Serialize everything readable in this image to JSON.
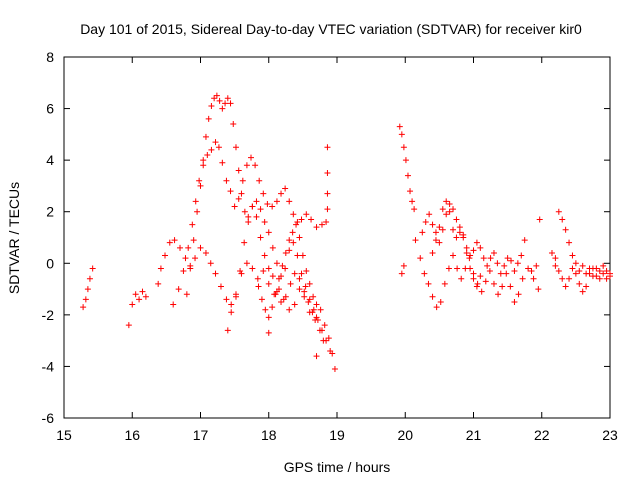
{
  "chart_data": {
    "type": "scatter",
    "title": "Day 101 of 2015, Sidereal Day-to-day VTEC variation (SDTVAR) for receiver kir0",
    "xlabel": "GPS time / hours",
    "ylabel": "SDTVAR / TECUs",
    "xlim": [
      15,
      23
    ],
    "ylim": [
      -6,
      8
    ],
    "xticks": [
      "15",
      "16",
      "17",
      "18",
      "19",
      "20",
      "21",
      "22",
      "23"
    ],
    "yticks": [
      "-6",
      "-4",
      "-2",
      "0",
      "2",
      "4",
      "6",
      "8"
    ],
    "marker": "+",
    "marker_color": "#ff0000",
    "segments": [
      {
        "name": "seg-a",
        "points": [
          [
            15.28,
            -1.7
          ],
          [
            15.32,
            -1.4
          ],
          [
            15.35,
            -1.0
          ],
          [
            15.38,
            -0.6
          ],
          [
            15.42,
            -0.2
          ]
        ]
      },
      {
        "name": "seg-b",
        "points": [
          [
            15.95,
            -2.4
          ],
          [
            16.0,
            -1.6
          ],
          [
            16.05,
            -1.2
          ],
          [
            16.1,
            -1.4
          ],
          [
            16.15,
            -1.1
          ],
          [
            16.2,
            -1.3
          ]
        ]
      },
      {
        "name": "seg-c",
        "points": [
          [
            16.38,
            -0.8
          ],
          [
            16.42,
            -0.2
          ],
          [
            16.48,
            0.3
          ],
          [
            16.55,
            0.8
          ],
          [
            16.62,
            0.9
          ],
          [
            16.7,
            0.6
          ],
          [
            16.78,
            0.2
          ],
          [
            16.85,
            -0.1
          ],
          [
            16.92,
            0.2
          ],
          [
            17.0,
            0.6
          ],
          [
            17.08,
            0.4
          ],
          [
            17.15,
            0.0
          ],
          [
            17.22,
            -0.4
          ],
          [
            17.3,
            -0.9
          ],
          [
            17.38,
            -1.4
          ],
          [
            17.45,
            -1.9
          ],
          [
            17.52,
            -1.2
          ],
          [
            17.6,
            -0.4
          ],
          [
            17.68,
            0.0
          ],
          [
            17.76,
            -0.2
          ],
          [
            17.84,
            -0.6
          ],
          [
            17.92,
            -0.3
          ],
          [
            18.0,
            -0.8
          ],
          [
            18.08,
            -1.2
          ],
          [
            18.15,
            -1.0
          ],
          [
            18.22,
            -1.4
          ],
          [
            18.3,
            -1.8
          ],
          [
            18.38,
            -1.6
          ],
          [
            18.45,
            -1.0
          ],
          [
            18.52,
            -1.3
          ],
          [
            18.6,
            -1.9
          ],
          [
            18.68,
            -2.2
          ],
          [
            18.75,
            -2.6
          ],
          [
            18.82,
            -2.4
          ],
          [
            18.88,
            -2.9
          ],
          [
            18.93,
            -3.5
          ],
          [
            18.97,
            -4.1
          ]
        ]
      },
      {
        "name": "seg-d",
        "points": [
          [
            16.6,
            -1.6
          ],
          [
            16.68,
            -1.0
          ],
          [
            16.75,
            -0.3
          ],
          [
            16.82,
            0.6
          ],
          [
            16.88,
            1.5
          ],
          [
            16.93,
            2.4
          ],
          [
            16.98,
            3.2
          ],
          [
            17.04,
            3.8
          ],
          [
            17.1,
            4.2
          ],
          [
            17.16,
            4.4
          ],
          [
            17.22,
            4.7
          ],
          [
            17.27,
            4.5
          ],
          [
            17.32,
            3.9
          ],
          [
            17.38,
            3.2
          ],
          [
            17.44,
            2.8
          ],
          [
            17.5,
            2.2
          ],
          [
            17.56,
            2.5
          ],
          [
            17.62,
            3.2
          ],
          [
            17.68,
            3.8
          ],
          [
            17.74,
            4.1
          ],
          [
            17.8,
            3.8
          ],
          [
            17.86,
            3.2
          ],
          [
            17.92,
            2.7
          ],
          [
            17.98,
            2.3
          ],
          [
            18.05,
            2.2
          ],
          [
            18.12,
            2.4
          ],
          [
            18.18,
            2.7
          ],
          [
            18.24,
            2.9
          ],
          [
            18.3,
            2.4
          ],
          [
            18.36,
            1.9
          ],
          [
            18.42,
            1.6
          ],
          [
            18.48,
            1.7
          ],
          [
            18.55,
            1.9
          ],
          [
            18.62,
            1.7
          ],
          [
            18.7,
            1.4
          ],
          [
            18.78,
            1.5
          ],
          [
            18.84,
            1.6
          ]
        ]
      },
      {
        "name": "seg-e",
        "points": [
          [
            16.8,
            -1.2
          ],
          [
            16.85,
            -0.2
          ],
          [
            16.9,
            0.9
          ],
          [
            16.95,
            2.0
          ],
          [
            17.0,
            3.0
          ],
          [
            17.04,
            4.0
          ],
          [
            17.08,
            4.9
          ],
          [
            17.12,
            5.6
          ],
          [
            17.16,
            6.1
          ],
          [
            17.2,
            6.4
          ],
          [
            17.24,
            6.5
          ],
          [
            17.28,
            6.3
          ],
          [
            17.32,
            6.0
          ],
          [
            17.36,
            6.2
          ],
          [
            17.4,
            6.4
          ],
          [
            17.44,
            6.2
          ],
          [
            17.48,
            5.4
          ],
          [
            17.52,
            4.5
          ],
          [
            17.56,
            3.6
          ],
          [
            17.6,
            2.7
          ],
          [
            17.65,
            2.0
          ],
          [
            17.7,
            1.8
          ],
          [
            17.76,
            2.2
          ],
          [
            17.82,
            2.4
          ],
          [
            17.88,
            2.1
          ],
          [
            17.94,
            1.6
          ],
          [
            18.0,
            1.2
          ],
          [
            18.06,
            0.6
          ],
          [
            18.12,
            0.0
          ],
          [
            18.18,
            -0.5
          ],
          [
            18.24,
            -0.2
          ],
          [
            18.3,
            0.5
          ],
          [
            18.36,
            0.8
          ],
          [
            18.42,
            0.3
          ],
          [
            18.48,
            -0.4
          ],
          [
            18.54,
            -0.9
          ],
          [
            18.6,
            -1.4
          ],
          [
            18.66,
            -1.8
          ],
          [
            18.72,
            -2.2
          ],
          [
            18.78,
            -2.6
          ],
          [
            18.84,
            -3.0
          ],
          [
            18.9,
            -3.4
          ]
        ]
      },
      {
        "name": "seg-f",
        "points": [
          [
            17.52,
            -1.3
          ],
          [
            17.58,
            -0.3
          ],
          [
            17.64,
            0.8
          ],
          [
            17.7,
            1.6
          ],
          [
            17.76,
            2.2
          ],
          [
            17.82,
            1.8
          ],
          [
            17.88,
            1.0
          ],
          [
            17.94,
            0.3
          ],
          [
            18.0,
            -0.2
          ],
          [
            18.06,
            -0.5
          ],
          [
            18.12,
            -1.1
          ],
          [
            18.18,
            -1.5
          ],
          [
            18.25,
            -1.3
          ],
          [
            18.32,
            -0.8
          ],
          [
            18.38,
            -0.4
          ],
          [
            18.45,
            -0.6
          ],
          [
            18.52,
            -1.1
          ],
          [
            18.58,
            -1.5
          ],
          [
            18.64,
            -1.9
          ],
          [
            18.7,
            -2.1
          ],
          [
            18.76,
            -1.8
          ]
        ]
      },
      {
        "name": "seg-g",
        "points": [
          [
            17.85,
            -0.9
          ],
          [
            17.9,
            -1.4
          ],
          [
            17.95,
            -1.8
          ],
          [
            18.0,
            -2.1
          ],
          [
            18.05,
            -1.7
          ],
          [
            18.1,
            -1.2
          ],
          [
            18.15,
            -0.6
          ],
          [
            18.2,
            -0.1
          ],
          [
            18.25,
            0.4
          ],
          [
            18.3,
            0.9
          ],
          [
            18.35,
            1.2
          ],
          [
            18.4,
            1.5
          ],
          [
            18.45,
            1.0
          ],
          [
            18.5,
            0.3
          ],
          [
            18.55,
            -0.3
          ],
          [
            18.6,
            -0.8
          ],
          [
            18.65,
            -1.3
          ],
          [
            18.7,
            -1.6
          ]
        ]
      },
      {
        "name": "seg-h",
        "points": [
          [
            17.4,
            -2.6
          ],
          [
            17.45,
            -1.6
          ],
          [
            18.0,
            -2.7
          ],
          [
            18.7,
            -3.6
          ],
          [
            18.8,
            -3.0
          ],
          [
            18.86,
            2.1
          ],
          [
            18.86,
            2.7
          ],
          [
            18.86,
            3.5
          ],
          [
            18.86,
            4.5
          ]
        ]
      },
      {
        "name": "seg-i",
        "points": [
          [
            19.92,
            5.3
          ],
          [
            19.95,
            5.0
          ],
          [
            19.98,
            4.5
          ],
          [
            20.01,
            4.0
          ],
          [
            20.04,
            3.4
          ],
          [
            20.07,
            2.8
          ],
          [
            20.1,
            2.4
          ],
          [
            20.13,
            2.1
          ]
        ]
      },
      {
        "name": "seg-j",
        "points": [
          [
            19.95,
            -0.4
          ],
          [
            19.98,
            -0.1
          ],
          [
            20.15,
            0.9
          ],
          [
            20.22,
            0.2
          ],
          [
            20.28,
            -0.4
          ],
          [
            20.34,
            -0.8
          ],
          [
            20.4,
            -1.3
          ],
          [
            20.46,
            -1.7
          ],
          [
            20.52,
            -1.5
          ],
          [
            20.58,
            -0.8
          ],
          [
            20.64,
            -0.2
          ],
          [
            20.7,
            0.3
          ],
          [
            20.76,
            -0.2
          ],
          [
            20.82,
            -0.6
          ],
          [
            20.88,
            -0.2
          ],
          [
            20.94,
            0.2
          ],
          [
            21.0,
            -0.4
          ],
          [
            21.06,
            -0.8
          ],
          [
            21.12,
            -1.1
          ],
          [
            21.18,
            -0.7
          ],
          [
            21.24,
            -0.3
          ],
          [
            21.3,
            -0.8
          ],
          [
            21.36,
            -1.2
          ],
          [
            21.42,
            -0.9
          ],
          [
            21.48,
            -0.4
          ],
          [
            21.54,
            -0.9
          ],
          [
            21.6,
            -1.5
          ],
          [
            21.66,
            -1.2
          ],
          [
            21.72,
            -0.6
          ],
          [
            21.8,
            -0.2
          ],
          [
            21.88,
            -0.6
          ],
          [
            21.95,
            -1.0
          ]
        ]
      },
      {
        "name": "seg-k",
        "points": [
          [
            20.25,
            1.2
          ],
          [
            20.3,
            1.6
          ],
          [
            20.35,
            1.9
          ],
          [
            20.4,
            1.5
          ],
          [
            20.45,
            1.2
          ],
          [
            20.5,
            0.8
          ],
          [
            20.55,
            1.3
          ],
          [
            20.6,
            1.9
          ],
          [
            20.65,
            2.3
          ],
          [
            20.7,
            2.1
          ],
          [
            20.75,
            1.7
          ],
          [
            20.8,
            1.2
          ],
          [
            20.85,
            1.0
          ],
          [
            20.9,
            0.6
          ],
          [
            20.95,
            0.3
          ],
          [
            21.0,
            0.5
          ],
          [
            21.05,
            0.8
          ],
          [
            21.1,
            0.6
          ],
          [
            21.15,
            0.2
          ],
          [
            21.2,
            -0.1
          ],
          [
            21.25,
            0.2
          ],
          [
            21.3,
            0.4
          ],
          [
            21.35,
            0.0
          ],
          [
            21.4,
            -0.4
          ],
          [
            21.45,
            -0.1
          ],
          [
            21.5,
            0.2
          ],
          [
            21.55,
            0.1
          ],
          [
            21.6,
            -0.3
          ],
          [
            21.65,
            0.0
          ],
          [
            21.7,
            0.3
          ],
          [
            21.75,
            0.9
          ],
          [
            21.85,
            -0.3
          ],
          [
            21.92,
            -0.1
          ],
          [
            21.97,
            1.7
          ]
        ]
      },
      {
        "name": "seg-l",
        "points": [
          [
            20.4,
            0.4
          ],
          [
            20.45,
            0.9
          ],
          [
            20.5,
            1.4
          ],
          [
            20.55,
            2.1
          ],
          [
            20.6,
            2.4
          ],
          [
            20.65,
            2.0
          ],
          [
            20.7,
            1.3
          ],
          [
            20.75,
            1.0
          ],
          [
            20.8,
            1.4
          ],
          [
            20.85,
            1.1
          ],
          [
            20.9,
            0.4
          ],
          [
            20.95,
            -0.2
          ],
          [
            21.0,
            -0.6
          ],
          [
            21.05,
            -0.9
          ],
          [
            21.1,
            -0.5
          ]
        ]
      },
      {
        "name": "seg-m",
        "points": [
          [
            22.15,
            0.4
          ],
          [
            22.2,
            0.2
          ],
          [
            22.25,
            2.0
          ],
          [
            22.3,
            1.7
          ],
          [
            22.35,
            1.3
          ],
          [
            22.4,
            0.8
          ],
          [
            22.45,
            0.3
          ],
          [
            22.5,
            -0.4
          ],
          [
            22.55,
            -0.8
          ],
          [
            22.6,
            -1.1
          ],
          [
            22.65,
            -0.9
          ],
          [
            22.7,
            -0.4
          ],
          [
            22.75,
            -0.2
          ],
          [
            22.8,
            -0.5
          ],
          [
            22.85,
            -0.3
          ],
          [
            22.9,
            -0.4
          ],
          [
            22.95,
            -0.6
          ],
          [
            23.0,
            -0.5
          ]
        ]
      },
      {
        "name": "seg-n",
        "points": [
          [
            22.2,
            -0.1
          ],
          [
            22.25,
            -0.3
          ],
          [
            22.3,
            -0.6
          ],
          [
            22.35,
            -0.9
          ],
          [
            22.4,
            -0.6
          ],
          [
            22.45,
            -0.2
          ],
          [
            22.5,
            0.0
          ],
          [
            22.55,
            -0.3
          ],
          [
            22.6,
            -0.1
          ],
          [
            22.65,
            -0.4
          ],
          [
            22.7,
            -0.2
          ],
          [
            22.75,
            -0.5
          ],
          [
            22.8,
            -0.2
          ],
          [
            22.85,
            -0.6
          ],
          [
            22.9,
            -0.1
          ],
          [
            22.95,
            -0.3
          ],
          [
            23.0,
            -0.4
          ]
        ]
      }
    ]
  }
}
